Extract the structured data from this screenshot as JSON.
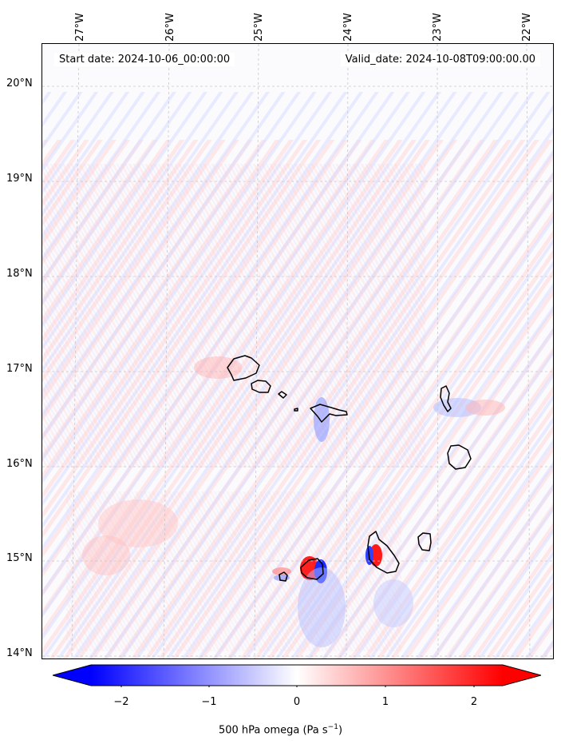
{
  "header": {
    "start_date": "Start date: 2024-10-06_00:00:00",
    "valid_date": "Valid_date: 2024-10-08T09:00:00.00"
  },
  "axes": {
    "lon_ticks": [
      "27°W",
      "26°W",
      "25°W",
      "24°W",
      "23°W",
      "22°W"
    ],
    "lat_ticks": [
      "20°N",
      "19°N",
      "18°N",
      "17°N",
      "16°N",
      "15°N",
      "14°N"
    ]
  },
  "colorbar": {
    "ticks": [
      "−2",
      "−1",
      "0",
      "1",
      "2"
    ],
    "label_text": "500 hPa omega (Pa s",
    "label_sup": "−1",
    "label_end": ")",
    "range": [
      -2.6,
      2.6
    ],
    "colors": {
      "negative": "#0000ff",
      "zero": "#ffffff",
      "positive": "#ff0000"
    }
  },
  "map": {
    "field": "500 hPa omega",
    "lon_range": [
      -27.5,
      -21.9
    ],
    "lat_range": [
      13.95,
      20.45
    ],
    "coastline_color": "#000000",
    "gridline_color": "#c8c8c8",
    "islands": [
      "Santo Antão",
      "São Vicente",
      "Santa Luzia",
      "São Nicolau",
      "Sal",
      "Boa Vista",
      "Brava",
      "Fogo",
      "Santiago",
      "Maio"
    ]
  }
}
